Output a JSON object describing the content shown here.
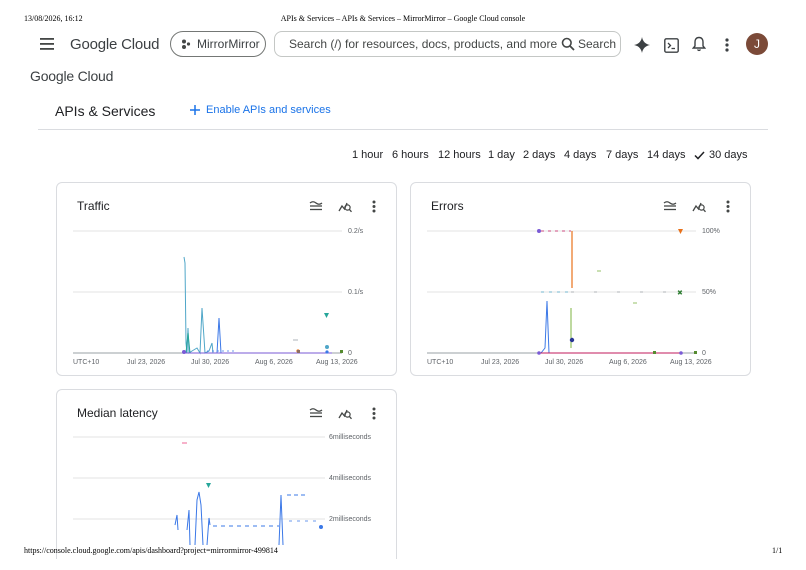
{
  "print_header": {
    "datetime": "13/08/2026, 16:12",
    "page_title": "APIs & Services – APIs & Services – MirrorMirror – Google Cloud console"
  },
  "print_footer": {
    "url": "https://console.cloud.google.com/apis/dashboard?project=mirrormirror-499814",
    "page": "1/1"
  },
  "topbar": {
    "menu_icon": "hamburger-menu-icon",
    "logo": "Google Cloud",
    "project_name": "MirrorMirror",
    "search_placeholder": "Search (/) for resources, docs, products, and more",
    "search_button": "Search",
    "icons": [
      "gemini-sparkle-icon",
      "cloud-shell-icon",
      "notifications-bell-icon",
      "more-vert-icon"
    ],
    "avatar_initial": "J",
    "avatar_color": "#7b4a38"
  },
  "secondary_logo": "Google Cloud",
  "page": {
    "title": "APIs & Services",
    "enable_link": "Enable APIs and services",
    "accent": "#1a73e8"
  },
  "time_ranges": {
    "options": [
      "1 hour",
      "6 hours",
      "12 hours",
      "1 day",
      "2 days",
      "4 days",
      "7 days",
      "14 days",
      "30 days"
    ],
    "selected": "30 days"
  },
  "cards": {
    "traffic": {
      "title": "Traffic",
      "y_ticks": [
        "0.2/s",
        "0.1/s",
        "0"
      ],
      "x_ticks": [
        "UTC+10",
        "Jul 23, 2026",
        "Jul 30, 2026",
        "Aug 6, 2026",
        "Aug 13, 2026"
      ]
    },
    "errors": {
      "title": "Errors",
      "y_ticks": [
        "100%",
        "50%",
        "0"
      ],
      "x_ticks": [
        "UTC+10",
        "Jul 23, 2026",
        "Jul 30, 2026",
        "Aug 6, 2026",
        "Aug 13, 2026"
      ]
    },
    "latency": {
      "title": "Median latency",
      "y_ticks": [
        "6milliseconds",
        "4milliseconds",
        "2milliseconds"
      ]
    }
  },
  "chart_data": [
    {
      "type": "line",
      "title": "Traffic",
      "ylim": [
        0,
        0.2
      ],
      "y_unit": "/s",
      "x_ticks": [
        "Jul 23, 2026",
        "Jul 30, 2026",
        "Aug 6, 2026",
        "Aug 13, 2026"
      ],
      "series": [
        {
          "color": "#4fa6c8",
          "points": [
            [
              0.3,
              0.16
            ],
            [
              0.31,
              0.15
            ],
            [
              0.32,
              0.02
            ],
            [
              0.33,
              0.0
            ],
            [
              0.35,
              0.0
            ],
            [
              0.36,
              0.07
            ],
            [
              0.38,
              0.01
            ],
            [
              0.4,
              0.05
            ],
            [
              0.41,
              0.0
            ],
            [
              0.45,
              0.0
            ]
          ]
        },
        {
          "color": "#7a5ad6",
          "points": [
            [
              0.3,
              0.0
            ],
            [
              0.5,
              0.0
            ],
            [
              0.8,
              0.0
            ]
          ]
        }
      ]
    },
    {
      "type": "line",
      "title": "Errors",
      "ylim": [
        0,
        100
      ],
      "y_unit": "%",
      "x_ticks": [
        "Jul 23, 2026",
        "Jul 30, 2026",
        "Aug 6, 2026",
        "Aug 13, 2026"
      ],
      "series": [
        {
          "color": "#3b78e7",
          "points": [
            [
              0.33,
              0
            ],
            [
              0.35,
              42
            ],
            [
              0.36,
              0
            ]
          ]
        },
        {
          "color": "#e8711a",
          "points": [
            [
              0.41,
              100
            ],
            [
              0.41,
              50
            ]
          ]
        },
        {
          "color": "#34a853",
          "points": [
            [
              0.41,
              35
            ],
            [
              0.41,
              5
            ]
          ]
        },
        {
          "color": "#c2185b",
          "points": [
            [
              0.3,
              0
            ],
            [
              0.6,
              0
            ],
            [
              0.8,
              0
            ]
          ]
        }
      ]
    },
    {
      "type": "line",
      "title": "Median latency",
      "ylim": [
        0,
        6
      ],
      "y_unit": "milliseconds",
      "series": [
        {
          "color": "#3b78e7",
          "points": [
            [
              0.4,
              1.3
            ],
            [
              0.42,
              0.5
            ],
            [
              0.44,
              2.6
            ],
            [
              0.45,
              0.4
            ],
            [
              0.5,
              2.0
            ],
            [
              0.65,
              2.0
            ],
            [
              0.66,
              0.2
            ],
            [
              0.68,
              3.0
            ],
            [
              0.75,
              3.0
            ]
          ]
        }
      ]
    }
  ]
}
